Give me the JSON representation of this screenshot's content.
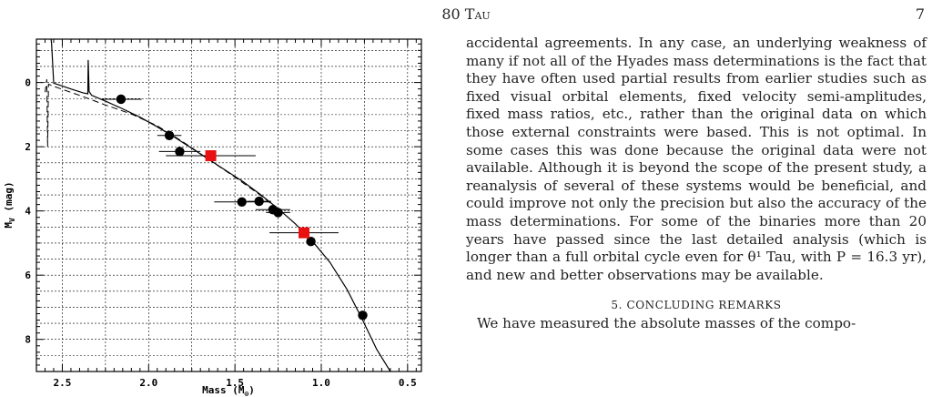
{
  "running_head": {
    "title_number": "80",
    "title_name": "Tau",
    "page_number": "7"
  },
  "chart_data": {
    "type": "scatter",
    "xlabel": "Mass (M",
    "xlabel_sub": "⊙",
    "xlabel_close": ")",
    "ylabel": "M",
    "ylabel_sub": "V",
    "ylabel_rest": " (mag)",
    "xlim": [
      2.65,
      0.42
    ],
    "ylim": [
      9.0,
      -1.35
    ],
    "x_ticks": [
      2.5,
      2.0,
      1.5,
      1.0,
      0.5
    ],
    "x_tick_labels": [
      "2.5",
      "2.0",
      "1.5",
      "1.0",
      "0.5"
    ],
    "y_ticks": [
      0,
      2,
      4,
      6,
      8
    ],
    "y_tick_labels": [
      "0",
      "2",
      "4",
      "6",
      "8"
    ],
    "grid": true,
    "series": [
      {
        "marker": "circle",
        "color": "#000000",
        "points": [
          {
            "x": 2.16,
            "y": 0.52,
            "xerr": 0.12
          },
          {
            "x": 1.88,
            "y": 1.65,
            "xerr": 0.07
          },
          {
            "x": 1.82,
            "y": 2.15,
            "xerr": 0.12
          },
          {
            "x": 1.46,
            "y": 3.72,
            "xerr": 0.16
          },
          {
            "x": 1.36,
            "y": 3.7,
            "xerr": 0.07
          },
          {
            "x": 1.28,
            "y": 3.96,
            "xerr": 0.1
          },
          {
            "x": 1.25,
            "y": 4.05,
            "xerr": 0.07
          },
          {
            "x": 1.06,
            "y": 4.95,
            "xerr": 0.0
          },
          {
            "x": 0.76,
            "y": 7.25,
            "xerr": 0.0
          }
        ]
      },
      {
        "marker": "square",
        "color": "#e81010",
        "points": [
          {
            "x": 1.64,
            "y": 2.28,
            "xerr": 0.26
          },
          {
            "x": 1.1,
            "y": 4.68,
            "xerr": 0.2
          }
        ]
      }
    ],
    "isochrone_solid": [
      [
        0.6,
        9.0
      ],
      [
        0.68,
        8.3
      ],
      [
        0.76,
        7.4
      ],
      [
        0.85,
        6.45
      ],
      [
        0.95,
        5.6
      ],
      [
        1.05,
        4.95
      ],
      [
        1.15,
        4.4
      ],
      [
        1.25,
        3.93
      ],
      [
        1.35,
        3.5
      ],
      [
        1.45,
        3.1
      ],
      [
        1.55,
        2.75
      ],
      [
        1.65,
        2.4
      ],
      [
        1.75,
        2.05
      ],
      [
        1.85,
        1.7
      ],
      [
        1.95,
        1.38
      ],
      [
        2.05,
        1.08
      ],
      [
        2.15,
        0.82
      ],
      [
        2.25,
        0.58
      ],
      [
        2.33,
        0.4
      ],
      [
        2.345,
        0.28
      ],
      [
        2.35,
        -0.7
      ],
      [
        2.352,
        0.35
      ],
      [
        2.38,
        0.32
      ],
      [
        2.45,
        0.2
      ],
      [
        2.55,
        0.02
      ],
      [
        2.562,
        -1.2
      ],
      [
        2.565,
        -1.35
      ]
    ],
    "isochrone_dashed": [
      [
        1.25,
        3.95
      ],
      [
        1.35,
        3.52
      ],
      [
        1.5,
        2.95
      ],
      [
        1.65,
        2.4
      ],
      [
        1.8,
        1.85
      ],
      [
        1.95,
        1.35
      ],
      [
        2.1,
        0.98
      ],
      [
        2.25,
        0.7
      ],
      [
        2.4,
        0.4
      ],
      [
        2.55,
        0.12
      ],
      [
        2.58,
        0.05
      ],
      [
        2.585,
        2.0
      ],
      [
        2.59,
        -0.1
      ],
      [
        2.6,
        0.3
      ]
    ]
  },
  "body": {
    "paragraph": "accidental agreements. In any case, an underlying weakness of many if not all of the Hyades mass determinations is the fact that they have often used partial results from earlier studies such as fixed visual orbital elements, fixed velocity semi-amplitudes, fixed mass ratios, etc., rather than the original data on which those external constraints were based. This is not optimal. In some cases this was done because the original data were not available. Although it is beyond the scope of the present study, a reanalysis of several of these systems would be beneficial, and could improve not only the precision but also the accuracy of the mass determinations. For some of the binaries more than 20 years have passed since the last detailed analysis (which is longer than a full orbital cycle even for θ¹ Tau, with P = 16.3 yr), and new and better observations may be available.",
    "section_heading": "5. Concluding Remarks",
    "next_paragraph_start": "We have measured the absolute masses of the compo-"
  }
}
